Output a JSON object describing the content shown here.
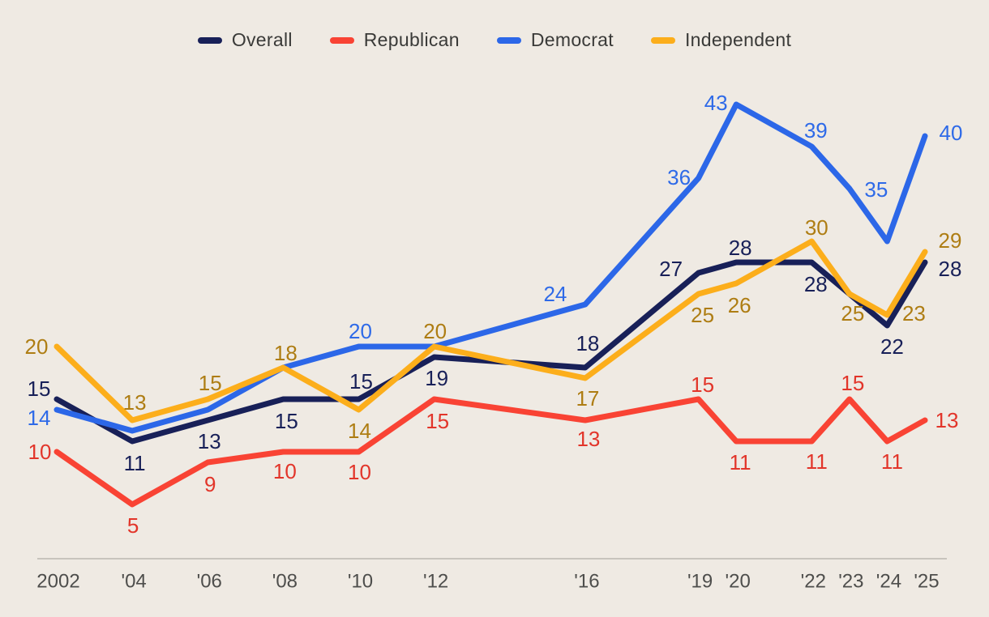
{
  "chart_data": {
    "type": "line",
    "title": "",
    "background": "#efeae3",
    "x_years": [
      2002,
      2004,
      2006,
      2008,
      2010,
      2012,
      2016,
      2019,
      2020,
      2022,
      2023,
      2024,
      2025
    ],
    "x_tick_labels": [
      "2002",
      "'04",
      "'06",
      "'08",
      "'10",
      "'12",
      "'16",
      "'19",
      "'20",
      "'22",
      "'23",
      "'24",
      "'25"
    ],
    "ylim": [
      0,
      50
    ],
    "grid": false,
    "legend_position": "top-center",
    "axis": {
      "line_color": "#c8c4bd",
      "tick_text_color": "#4e4e4c"
    },
    "series": [
      {
        "name": "Overall",
        "color": "#182058",
        "label_color": "#182058",
        "values": [
          15,
          11,
          13,
          15,
          15,
          19,
          18,
          27,
          28,
          28,
          null,
          22,
          28
        ],
        "label_offsets": [
          [
            -22,
            -13
          ],
          [
            3,
            27
          ],
          [
            2,
            26
          ],
          [
            4,
            27
          ],
          [
            3,
            -22
          ],
          [
            3,
            26
          ],
          [
            3,
            -30
          ],
          [
            -34,
            -5
          ],
          [
            5,
            -18
          ],
          [
            5,
            27
          ],
          null,
          [
            6,
            26
          ],
          [
            31,
            8
          ]
        ]
      },
      {
        "name": "Republican",
        "color": "#f94334",
        "label_color": "#e2352a",
        "values": [
          10,
          5,
          9,
          10,
          10,
          15,
          13,
          15,
          11,
          11,
          15,
          11,
          13
        ],
        "label_offsets": [
          [
            -21,
            0
          ],
          [
            1,
            26
          ],
          [
            3,
            27
          ],
          [
            2,
            24
          ],
          [
            1,
            25
          ],
          [
            4,
            27
          ],
          [
            4,
            23
          ],
          [
            5,
            -18
          ],
          [
            5,
            26
          ],
          [
            6,
            25
          ],
          [
            4,
            -20
          ],
          [
            6,
            25
          ],
          [
            27,
            0
          ]
        ]
      },
      {
        "name": "Democrat",
        "color": "#2c67e8",
        "label_color": "#2e6ae8",
        "values": [
          14,
          12,
          14,
          18,
          20,
          20,
          24,
          36,
          43,
          39,
          35,
          30,
          40
        ],
        "label_offsets": [
          [
            -22,
            10
          ],
          null,
          null,
          null,
          [
            2,
            -19
          ],
          null,
          [
            -37,
            -13
          ],
          [
            -24,
            -1
          ],
          [
            -25,
            -2
          ],
          [
            5,
            -20
          ],
          [
            33,
            1
          ],
          null,
          [
            32,
            -4
          ]
        ]
      },
      {
        "name": "Independent",
        "color": "#fcae1b",
        "label_color": "#ae7d13",
        "values": [
          20,
          13,
          15,
          18,
          14,
          20,
          17,
          25,
          26,
          30,
          25,
          23,
          29
        ],
        "label_offsets": [
          [
            -25,
            0
          ],
          [
            3,
            -22
          ],
          [
            3,
            -20
          ],
          [
            3,
            -18
          ],
          [
            1,
            26
          ],
          [
            1,
            -19
          ],
          [
            3,
            25
          ],
          [
            5,
            26
          ],
          [
            4,
            27
          ],
          [
            6,
            -17
          ],
          [
            4,
            24
          ],
          [
            33,
            -2
          ],
          [
            31,
            -14
          ]
        ]
      }
    ]
  },
  "legend": {
    "items": [
      {
        "label": "Overall"
      },
      {
        "label": "Republican"
      },
      {
        "label": "Democrat"
      },
      {
        "label": "Independent"
      }
    ]
  }
}
